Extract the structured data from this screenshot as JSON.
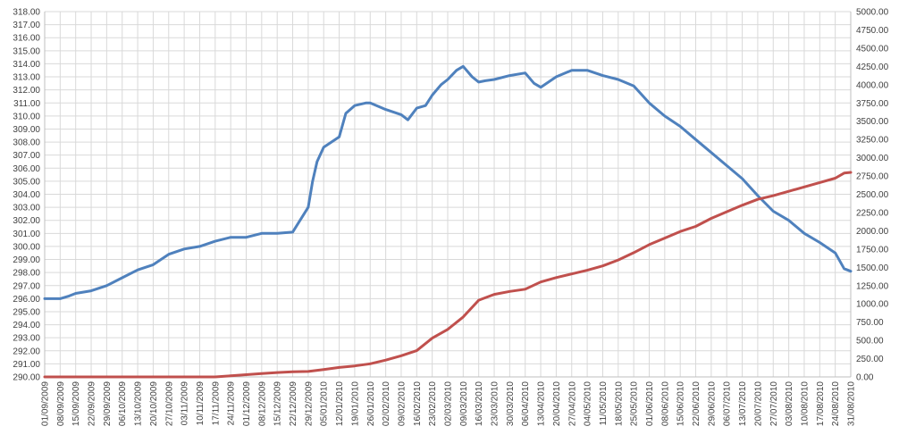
{
  "chart_data": {
    "type": "line",
    "title": "",
    "xlabel": "",
    "ylabel": "",
    "grid": true,
    "legend": "none",
    "y_left": {
      "min": 290,
      "max": 318,
      "step": 1
    },
    "y_right": {
      "min": 0,
      "max": 5000,
      "step": 250
    },
    "x_start": "01/09/2009",
    "x_end": "31/08/2010",
    "x_ticks": [
      "01/09/2009",
      "08/09/2009",
      "15/09/2009",
      "22/09/2009",
      "29/09/2009",
      "06/10/2009",
      "13/10/2009",
      "20/10/2009",
      "27/10/2009",
      "03/11/2009",
      "10/11/2009",
      "17/11/2009",
      "24/11/2009",
      "01/12/2009",
      "08/12/2009",
      "15/12/2009",
      "22/12/2009",
      "29/12/2009",
      "05/01/2010",
      "12/01/2010",
      "19/01/2010",
      "26/01/2010",
      "02/02/2010",
      "09/02/2010",
      "16/02/2010",
      "23/02/2010",
      "02/03/2010",
      "09/03/2010",
      "16/03/2010",
      "23/03/2010",
      "30/03/2010",
      "06/04/2010",
      "13/04/2010",
      "20/04/2010",
      "27/04/2010",
      "04/05/2010",
      "11/05/2010",
      "18/05/2010",
      "25/05/2010",
      "01/06/2010",
      "08/06/2010",
      "15/06/2010",
      "22/06/2010",
      "29/06/2010",
      "06/07/2010",
      "13/07/2010",
      "20/07/2010",
      "27/07/2010",
      "03/08/2010",
      "10/08/2010",
      "17/08/2010",
      "24/08/2010",
      "31/08/2010"
    ],
    "y_left_ticks": [
      "290.00",
      "291.00",
      "292.00",
      "293.00",
      "294.00",
      "295.00",
      "296.00",
      "297.00",
      "298.00",
      "299.00",
      "300.00",
      "301.00",
      "302.00",
      "303.00",
      "304.00",
      "305.00",
      "306.00",
      "307.00",
      "308.00",
      "309.00",
      "310.00",
      "311.00",
      "312.00",
      "313.00",
      "314.00",
      "315.00",
      "316.00",
      "317.00",
      "318.00"
    ],
    "y_right_ticks": [
      "0.00",
      "250.00",
      "500.00",
      "750.00",
      "1000.00",
      "1250.00",
      "1500.00",
      "1750.00",
      "2000.00",
      "2250.00",
      "2500.00",
      "2750.00",
      "3000.00",
      "3250.00",
      "3500.00",
      "3750.00",
      "4000.00",
      "4250.00",
      "4500.00",
      "4750.00",
      "5000.00"
    ],
    "series": [
      {
        "axis": "left",
        "color": "#4f81bd",
        "points": [
          [
            "01/09/2009",
            296.0
          ],
          [
            "08/09/2009",
            296.0
          ],
          [
            "12/09/2009",
            296.2
          ],
          [
            "15/09/2009",
            296.4
          ],
          [
            "22/09/2009",
            296.6
          ],
          [
            "29/09/2009",
            297.0
          ],
          [
            "06/10/2009",
            297.6
          ],
          [
            "13/10/2009",
            298.2
          ],
          [
            "20/10/2009",
            298.6
          ],
          [
            "27/10/2009",
            299.4
          ],
          [
            "03/11/2009",
            299.8
          ],
          [
            "10/11/2009",
            300.0
          ],
          [
            "17/11/2009",
            300.4
          ],
          [
            "24/11/2009",
            300.7
          ],
          [
            "01/12/2009",
            300.7
          ],
          [
            "08/12/2009",
            301.0
          ],
          [
            "15/12/2009",
            301.0
          ],
          [
            "22/12/2009",
            301.1
          ],
          [
            "29/12/2009",
            303.0
          ],
          [
            "31/12/2009",
            305.0
          ],
          [
            "02/01/2010",
            306.5
          ],
          [
            "05/01/2010",
            307.6
          ],
          [
            "12/01/2010",
            308.4
          ],
          [
            "15/01/2010",
            310.2
          ],
          [
            "19/01/2010",
            310.8
          ],
          [
            "24/01/2010",
            311.0
          ],
          [
            "26/01/2010",
            311.0
          ],
          [
            "02/02/2010",
            310.5
          ],
          [
            "09/02/2010",
            310.1
          ],
          [
            "12/02/2010",
            309.7
          ],
          [
            "16/02/2010",
            310.6
          ],
          [
            "20/02/2010",
            310.8
          ],
          [
            "23/02/2010",
            311.6
          ],
          [
            "27/02/2010",
            312.4
          ],
          [
            "02/03/2010",
            312.8
          ],
          [
            "06/03/2010",
            313.5
          ],
          [
            "09/03/2010",
            313.8
          ],
          [
            "13/03/2010",
            313.0
          ],
          [
            "16/03/2010",
            312.6
          ],
          [
            "19/03/2010",
            312.7
          ],
          [
            "23/03/2010",
            312.8
          ],
          [
            "30/03/2010",
            313.1
          ],
          [
            "06/04/2010",
            313.3
          ],
          [
            "10/04/2010",
            312.5
          ],
          [
            "13/04/2010",
            312.2
          ],
          [
            "20/04/2010",
            313.0
          ],
          [
            "27/04/2010",
            313.5
          ],
          [
            "04/05/2010",
            313.5
          ],
          [
            "11/05/2010",
            313.1
          ],
          [
            "18/05/2010",
            312.8
          ],
          [
            "25/05/2010",
            312.3
          ],
          [
            "01/06/2010",
            311.0
          ],
          [
            "08/06/2010",
            310.0
          ],
          [
            "15/06/2010",
            309.2
          ],
          [
            "22/06/2010",
            308.2
          ],
          [
            "29/06/2010",
            307.2
          ],
          [
            "06/07/2010",
            306.2
          ],
          [
            "13/07/2010",
            305.2
          ],
          [
            "20/07/2010",
            303.9
          ],
          [
            "27/07/2010",
            302.7
          ],
          [
            "03/08/2010",
            302.0
          ],
          [
            "10/08/2010",
            301.0
          ],
          [
            "17/08/2010",
            300.3
          ],
          [
            "24/08/2010",
            299.5
          ],
          [
            "28/08/2010",
            298.3
          ],
          [
            "31/08/2010",
            298.1
          ]
        ]
      },
      {
        "axis": "right",
        "color": "#c0504d",
        "points": [
          [
            "01/09/2009",
            0
          ],
          [
            "17/11/2009",
            0
          ],
          [
            "24/11/2009",
            15
          ],
          [
            "01/12/2009",
            30
          ],
          [
            "08/12/2009",
            45
          ],
          [
            "15/12/2009",
            60
          ],
          [
            "22/12/2009",
            70
          ],
          [
            "29/12/2009",
            75
          ],
          [
            "05/01/2010",
            100
          ],
          [
            "12/01/2010",
            130
          ],
          [
            "19/01/2010",
            150
          ],
          [
            "26/01/2010",
            180
          ],
          [
            "02/02/2010",
            230
          ],
          [
            "09/02/2010",
            290
          ],
          [
            "16/02/2010",
            360
          ],
          [
            "23/02/2010",
            530
          ],
          [
            "02/03/2010",
            650
          ],
          [
            "09/03/2010",
            820
          ],
          [
            "16/03/2010",
            1050
          ],
          [
            "23/03/2010",
            1130
          ],
          [
            "30/03/2010",
            1170
          ],
          [
            "06/04/2010",
            1200
          ],
          [
            "13/04/2010",
            1300
          ],
          [
            "20/04/2010",
            1360
          ],
          [
            "27/04/2010",
            1410
          ],
          [
            "04/05/2010",
            1460
          ],
          [
            "11/05/2010",
            1520
          ],
          [
            "18/05/2010",
            1600
          ],
          [
            "25/05/2010",
            1700
          ],
          [
            "01/06/2010",
            1810
          ],
          [
            "08/06/2010",
            1900
          ],
          [
            "15/06/2010",
            1990
          ],
          [
            "22/06/2010",
            2060
          ],
          [
            "29/06/2010",
            2170
          ],
          [
            "06/07/2010",
            2260
          ],
          [
            "13/07/2010",
            2350
          ],
          [
            "20/07/2010",
            2430
          ],
          [
            "27/07/2010",
            2480
          ],
          [
            "03/08/2010",
            2540
          ],
          [
            "10/08/2010",
            2600
          ],
          [
            "17/08/2010",
            2660
          ],
          [
            "24/08/2010",
            2720
          ],
          [
            "28/08/2010",
            2790
          ],
          [
            "31/08/2010",
            2800
          ]
        ]
      }
    ]
  }
}
